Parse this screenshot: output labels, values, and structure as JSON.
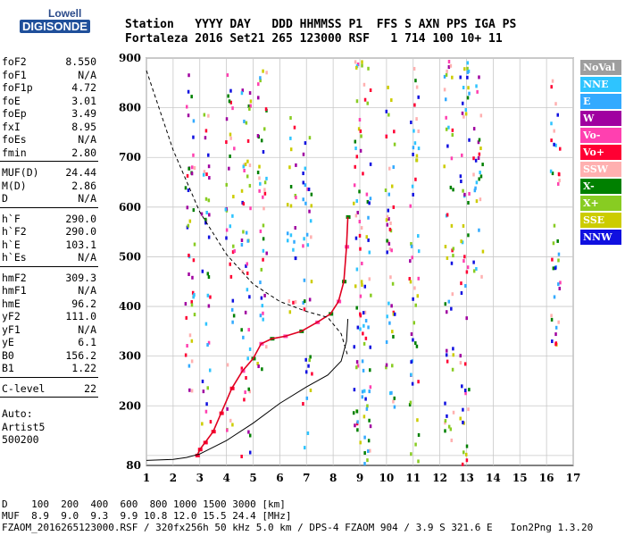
{
  "logo": {
    "line1": "Lowell",
    "line2": "DIGISONDE"
  },
  "header": {
    "line1": "Station   YYYY DAY   DDD HHMMSS P1  FFS S AXN PPS IGA PS",
    "line2": "Fortaleza 2016 Set21 265 123000 RSF   1 714 100 10+ 11"
  },
  "params": {
    "group1": [
      {
        "k": "foF2",
        "v": "8.550"
      },
      {
        "k": "foF1",
        "v": "N/A"
      },
      {
        "k": "foF1p",
        "v": "4.72"
      },
      {
        "k": "foE",
        "v": "3.01"
      },
      {
        "k": "foEp",
        "v": "3.49"
      },
      {
        "k": "fxI",
        "v": "8.95"
      },
      {
        "k": "foEs",
        "v": "N/A"
      },
      {
        "k": "fmin",
        "v": "2.80"
      }
    ],
    "group2": [
      {
        "k": "MUF(D)",
        "v": "24.44"
      },
      {
        "k": "M(D)",
        "v": "2.86"
      },
      {
        "k": "D",
        "v": "N/A"
      }
    ],
    "group3": [
      {
        "k": "h`F",
        "v": "290.0"
      },
      {
        "k": "h`F2",
        "v": "290.0"
      },
      {
        "k": "h`E",
        "v": "103.1"
      },
      {
        "k": "h`Es",
        "v": "N/A"
      }
    ],
    "group4": [
      {
        "k": "hmF2",
        "v": "309.3"
      },
      {
        "k": "hmF1",
        "v": "N/A"
      },
      {
        "k": "hmE",
        "v": "96.2"
      },
      {
        "k": "yF2",
        "v": "111.0"
      },
      {
        "k": "yF1",
        "v": "N/A"
      },
      {
        "k": "yE",
        "v": "6.1"
      },
      {
        "k": "B0",
        "v": "156.2"
      },
      {
        "k": "B1",
        "v": "1.22"
      }
    ],
    "group5": [
      {
        "k": "C-level",
        "v": "22"
      }
    ],
    "auto": [
      "Auto:",
      "Artist5",
      "500200"
    ]
  },
  "legend": [
    {
      "label": "NoVal",
      "color": "#9e9e9e"
    },
    {
      "label": "NNE",
      "color": "#2ec4ff"
    },
    {
      "label": "E",
      "color": "#33aaff"
    },
    {
      "label": "W",
      "color": "#a000a0"
    },
    {
      "label": "Vo-",
      "color": "#ff40b0"
    },
    {
      "label": "Vo+",
      "color": "#ff0033"
    },
    {
      "label": "SSW",
      "color": "#ffb0b0"
    },
    {
      "label": "X-",
      "color": "#008000"
    },
    {
      "label": "X+",
      "color": "#88cc22"
    },
    {
      "label": "SSE",
      "color": "#cccc00"
    },
    {
      "label": "NNW",
      "color": "#1010e0"
    }
  ],
  "chart_data": {
    "type": "scatter",
    "xlabel": "",
    "ylabel": "",
    "xlim": [
      1,
      17
    ],
    "ylim": [
      80,
      900
    ],
    "xticks": [
      1,
      2,
      3,
      4,
      5,
      6,
      7,
      8,
      9,
      10,
      11,
      12,
      13,
      14,
      15,
      16,
      17
    ],
    "yticks": [
      100,
      200,
      300,
      400,
      500,
      600,
      700,
      800,
      900
    ],
    "ytick_labels_shown": [
      200,
      300,
      400,
      500,
      600,
      700,
      800,
      900
    ],
    "ymin_label": "80",
    "grid": true,
    "trace_virtual_height": [
      {
        "f": 2.9,
        "h": 100
      },
      {
        "f": 3.0,
        "h": 112
      },
      {
        "f": 3.2,
        "h": 126
      },
      {
        "f": 3.5,
        "h": 148
      },
      {
        "f": 3.8,
        "h": 185
      },
      {
        "f": 4.2,
        "h": 235
      },
      {
        "f": 4.6,
        "h": 270
      },
      {
        "f": 5.0,
        "h": 295
      },
      {
        "f": 5.3,
        "h": 325
      },
      {
        "f": 5.7,
        "h": 335
      },
      {
        "f": 6.2,
        "h": 340
      },
      {
        "f": 6.8,
        "h": 350
      },
      {
        "f": 7.4,
        "h": 368
      },
      {
        "f": 7.9,
        "h": 385
      },
      {
        "f": 8.2,
        "h": 410
      },
      {
        "f": 8.4,
        "h": 450
      },
      {
        "f": 8.5,
        "h": 520
      },
      {
        "f": 8.55,
        "h": 580
      }
    ],
    "profile_true_height": [
      {
        "f": 1.0,
        "h": 90
      },
      {
        "f": 2.0,
        "h": 92
      },
      {
        "f": 2.5,
        "h": 96
      },
      {
        "f": 3.0,
        "h": 103
      },
      {
        "f": 4.0,
        "h": 130
      },
      {
        "f": 5.0,
        "h": 165
      },
      {
        "f": 6.0,
        "h": 205
      },
      {
        "f": 7.0,
        "h": 238
      },
      {
        "f": 7.8,
        "h": 262
      },
      {
        "f": 8.3,
        "h": 290
      },
      {
        "f": 8.5,
        "h": 330
      },
      {
        "f": 8.55,
        "h": 375
      }
    ],
    "profile_extrapolation": [
      {
        "f": 1.0,
        "h": 875
      },
      {
        "f": 2.0,
        "h": 715
      },
      {
        "f": 3.0,
        "h": 590
      },
      {
        "f": 4.0,
        "h": 505
      },
      {
        "f": 5.0,
        "h": 445
      },
      {
        "f": 6.0,
        "h": 410
      },
      {
        "f": 7.0,
        "h": 390
      },
      {
        "f": 7.8,
        "h": 378
      },
      {
        "f": 8.3,
        "h": 345
      },
      {
        "f": 8.55,
        "h": 300
      }
    ],
    "echo_columns": [
      {
        "f": 2.6,
        "hmin": 220,
        "hmax": 880
      },
      {
        "f": 3.2,
        "hmin": 150,
        "hmax": 820
      },
      {
        "f": 4.1,
        "hmin": 150,
        "hmax": 900
      },
      {
        "f": 4.7,
        "hmin": 100,
        "hmax": 900
      },
      {
        "f": 5.3,
        "hmin": 260,
        "hmax": 900
      },
      {
        "f": 6.4,
        "hmin": 380,
        "hmax": 800
      },
      {
        "f": 7.0,
        "hmin": 90,
        "hmax": 760
      },
      {
        "f": 8.9,
        "hmin": 80,
        "hmax": 900
      },
      {
        "f": 9.2,
        "hmin": 80,
        "hmax": 900
      },
      {
        "f": 10.1,
        "hmin": 200,
        "hmax": 900
      },
      {
        "f": 11.0,
        "hmin": 80,
        "hmax": 900
      },
      {
        "f": 12.3,
        "hmin": 100,
        "hmax": 900
      },
      {
        "f": 12.9,
        "hmin": 80,
        "hmax": 900
      },
      {
        "f": 13.4,
        "hmin": 450,
        "hmax": 880
      },
      {
        "f": 16.3,
        "hmin": 320,
        "hmax": 860
      }
    ]
  },
  "footer": {
    "line1": "D    100  200  400  600  800 1000 1500 3000 [km]",
    "line2": "MUF  8.9  9.0  9.3  9.9 10.8 12.0 15.5 24.4 [MHz]",
    "line3": "FZAOM_2016265123000.RSF / 320fx256h 50 kHz 5.0 km / DPS-4 FZAOM 904 / 3.9 S 321.6 E   Ion2Png 1.3.20"
  }
}
